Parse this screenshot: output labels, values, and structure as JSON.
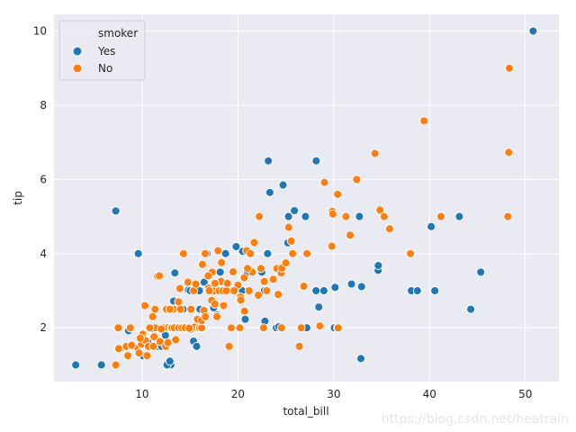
{
  "chart_data": {
    "type": "scatter",
    "xlabel": "total_bill",
    "ylabel": "tip",
    "xlim": [
      0.8,
      53.5
    ],
    "ylim": [
      0.55,
      10.45
    ],
    "xticks": [
      10,
      20,
      30,
      40,
      50
    ],
    "yticks": [
      2,
      4,
      6,
      8,
      10
    ],
    "grid": true,
    "legend": {
      "title": "smoker",
      "placement": "top-left",
      "entries": [
        {
          "label": "Yes",
          "color": "#1f77b4"
        },
        {
          "label": "No",
          "color": "#ff7f0e"
        }
      ]
    },
    "series": [
      {
        "name": "Yes",
        "color": "#1f77b4",
        "points": [
          [
            3.07,
            1.0
          ],
          [
            5.75,
            1.0
          ],
          [
            7.25,
            5.15
          ],
          [
            9.6,
            4.0
          ],
          [
            7.74,
            1.44
          ],
          [
            8.58,
            1.92
          ],
          [
            10.07,
            1.25
          ],
          [
            10.59,
            1.61
          ],
          [
            11.02,
            1.98
          ],
          [
            11.59,
            1.5
          ],
          [
            12.03,
            1.5
          ],
          [
            12.43,
            1.8
          ],
          [
            12.69,
            2.0
          ],
          [
            13.0,
            1.0
          ],
          [
            12.6,
            1.0
          ],
          [
            12.9,
            1.1
          ],
          [
            13.28,
            2.72
          ],
          [
            13.42,
            3.48
          ],
          [
            14.07,
            2.5
          ],
          [
            14.26,
            2.5
          ],
          [
            14.83,
            3.02
          ],
          [
            15.02,
            3.0
          ],
          [
            15.36,
            1.64
          ],
          [
            15.69,
            1.5
          ],
          [
            15.98,
            3.0
          ],
          [
            16.04,
            2.5
          ],
          [
            16.31,
            2.0
          ],
          [
            16.47,
            3.23
          ],
          [
            16.76,
            4.0
          ],
          [
            17.07,
            3.0
          ],
          [
            17.46,
            2.54
          ],
          [
            17.81,
            2.34
          ],
          [
            18.15,
            3.5
          ],
          [
            18.71,
            4.0
          ],
          [
            19.44,
            3.0
          ],
          [
            19.81,
            4.19
          ],
          [
            20.08,
            3.15
          ],
          [
            20.23,
            2.01
          ],
          [
            20.45,
            3.0
          ],
          [
            20.76,
            2.23
          ],
          [
            21.01,
            3.5
          ],
          [
            20.49,
            4.06
          ],
          [
            22.49,
            3.5
          ],
          [
            22.76,
            3.0
          ],
          [
            22.82,
            2.18
          ],
          [
            23.1,
            4.0
          ],
          [
            23.17,
            6.5
          ],
          [
            23.33,
            5.65
          ],
          [
            24.01,
            2.0
          ],
          [
            24.27,
            2.03
          ],
          [
            24.71,
            5.85
          ],
          [
            25.21,
            4.29
          ],
          [
            25.28,
            5.0
          ],
          [
            25.89,
            5.16
          ],
          [
            26.86,
            3.14
          ],
          [
            27.05,
            5.0
          ],
          [
            27.18,
            2.0
          ],
          [
            27.28,
            4.0
          ],
          [
            28.15,
            3.0
          ],
          [
            28.17,
            6.5
          ],
          [
            28.44,
            2.56
          ],
          [
            28.97,
            3.0
          ],
          [
            30.06,
            2.0
          ],
          [
            30.4,
            2.0
          ],
          [
            30.14,
            3.09
          ],
          [
            31.85,
            3.18
          ],
          [
            32.68,
            5.0
          ],
          [
            32.83,
            1.17
          ],
          [
            32.9,
            3.11
          ],
          [
            34.63,
            3.55
          ],
          [
            34.65,
            3.68
          ],
          [
            34.81,
            5.2
          ],
          [
            38.07,
            4.0
          ],
          [
            38.1,
            3.0
          ],
          [
            38.73,
            3.0
          ],
          [
            40.17,
            4.73
          ],
          [
            40.55,
            3.0
          ],
          [
            43.11,
            5.0
          ],
          [
            44.3,
            2.5
          ],
          [
            45.35,
            3.5
          ],
          [
            50.81,
            10.0
          ]
        ]
      },
      {
        "name": "No",
        "color": "#ff7f0e",
        "points": [
          [
            7.25,
            1.0
          ],
          [
            7.51,
            2.0
          ],
          [
            7.56,
            1.44
          ],
          [
            8.35,
            1.5
          ],
          [
            8.51,
            1.25
          ],
          [
            8.77,
            2.0
          ],
          [
            9.55,
            1.45
          ],
          [
            9.68,
            1.32
          ],
          [
            9.94,
            1.56
          ],
          [
            10.07,
            1.83
          ],
          [
            10.27,
            1.71
          ],
          [
            10.29,
            2.6
          ],
          [
            10.33,
            1.67
          ],
          [
            10.34,
            1.66
          ],
          [
            10.51,
            1.25
          ],
          [
            10.65,
            1.5
          ],
          [
            11.17,
            1.5
          ],
          [
            11.24,
            1.76
          ],
          [
            11.35,
            2.5
          ],
          [
            11.38,
            2.0
          ],
          [
            11.61,
            3.39
          ],
          [
            11.87,
            1.63
          ],
          [
            12.26,
            2.0
          ],
          [
            12.46,
            1.5
          ],
          [
            12.54,
            2.5
          ],
          [
            12.74,
            2.01
          ],
          [
            13.03,
            2.0
          ],
          [
            13.13,
            2.0
          ],
          [
            13.27,
            2.5
          ],
          [
            13.37,
            2.0
          ],
          [
            13.81,
            2.0
          ],
          [
            13.94,
            3.06
          ],
          [
            14.15,
            2.0
          ],
          [
            14.31,
            4.0
          ],
          [
            14.48,
            2.0
          ],
          [
            14.78,
            3.23
          ],
          [
            15.04,
            1.96
          ],
          [
            15.38,
            3.0
          ],
          [
            15.48,
            2.02
          ],
          [
            15.77,
            2.23
          ],
          [
            15.95,
            2.0
          ],
          [
            16.0,
            2.0
          ],
          [
            16.21,
            2.0
          ],
          [
            16.29,
            3.71
          ],
          [
            16.45,
            2.47
          ],
          [
            16.58,
            4.0
          ],
          [
            16.93,
            3.07
          ],
          [
            17.26,
            2.74
          ],
          [
            17.31,
            3.5
          ],
          [
            17.51,
            3.0
          ],
          [
            17.59,
            2.64
          ],
          [
            17.92,
            4.08
          ],
          [
            18.04,
            3.0
          ],
          [
            18.24,
            3.25
          ],
          [
            18.29,
            3.76
          ],
          [
            18.43,
            3.0
          ],
          [
            18.78,
            3.0
          ],
          [
            19.08,
            1.5
          ],
          [
            19.49,
            3.51
          ],
          [
            19.65,
            3.0
          ],
          [
            20.27,
            2.83
          ],
          [
            20.29,
            2.75
          ],
          [
            20.65,
            3.35
          ],
          [
            20.69,
            2.45
          ],
          [
            20.92,
            4.08
          ],
          [
            21.16,
            3.0
          ],
          [
            21.5,
            3.5
          ],
          [
            21.7,
            4.3
          ],
          [
            22.12,
            2.88
          ],
          [
            22.23,
            5.0
          ],
          [
            22.67,
            2.0
          ],
          [
            22.75,
            3.25
          ],
          [
            23.68,
            3.31
          ],
          [
            24.06,
            3.6
          ],
          [
            24.52,
            3.48
          ],
          [
            24.55,
            2.0
          ],
          [
            24.59,
            3.61
          ],
          [
            25.0,
            3.75
          ],
          [
            25.29,
            4.71
          ],
          [
            25.56,
            4.34
          ],
          [
            25.71,
            4.0
          ],
          [
            26.41,
            1.5
          ],
          [
            26.88,
            3.12
          ],
          [
            27.2,
            4.0
          ],
          [
            28.55,
            2.05
          ],
          [
            29.03,
            5.92
          ],
          [
            29.8,
            4.2
          ],
          [
            29.85,
            5.14
          ],
          [
            30.46,
            2.0
          ],
          [
            30.4,
            5.6
          ],
          [
            31.27,
            5.0
          ],
          [
            31.71,
            4.5
          ],
          [
            32.4,
            6.0
          ],
          [
            34.3,
            6.7
          ],
          [
            34.83,
            5.17
          ],
          [
            35.26,
            5.0
          ],
          [
            35.83,
            4.67
          ],
          [
            38.01,
            4.0
          ],
          [
            39.42,
            7.58
          ],
          [
            41.19,
            5.0
          ],
          [
            48.17,
            5.0
          ],
          [
            48.27,
            6.73
          ],
          [
            48.33,
            9.0
          ],
          [
            20.2,
            2.0
          ],
          [
            20.0,
            3.15
          ],
          [
            19.6,
            3.0
          ],
          [
            18.5,
            2.6
          ],
          [
            17.8,
            2.3
          ],
          [
            16.9,
            3.4
          ],
          [
            16.2,
            2.2
          ],
          [
            14.9,
            1.99
          ],
          [
            14.0,
            2.5
          ],
          [
            13.5,
            1.68
          ],
          [
            12.9,
            2.5
          ],
          [
            12.0,
            1.97
          ],
          [
            11.8,
            3.4
          ],
          [
            11.1,
            2.3
          ],
          [
            10.8,
            2.0
          ],
          [
            9.8,
            1.72
          ],
          [
            8.9,
            1.53
          ],
          [
            15.6,
            3.18
          ],
          [
            17.0,
            3.0
          ],
          [
            19.3,
            2.0
          ],
          [
            21.3,
            4.0
          ],
          [
            23.0,
            3.0
          ],
          [
            24.2,
            2.9
          ],
          [
            26.6,
            2.0
          ],
          [
            29.9,
            5.07
          ],
          [
            16.6,
            2.3
          ],
          [
            17.6,
            3.2
          ],
          [
            13.8,
            2.7
          ],
          [
            15.1,
            2.5
          ],
          [
            18.9,
            3.2
          ],
          [
            21.0,
            3.6
          ],
          [
            22.4,
            3.6
          ],
          [
            12.7,
            1.6
          ]
        ]
      }
    ]
  },
  "watermark": "https://blog.csdn.net/heatrain"
}
